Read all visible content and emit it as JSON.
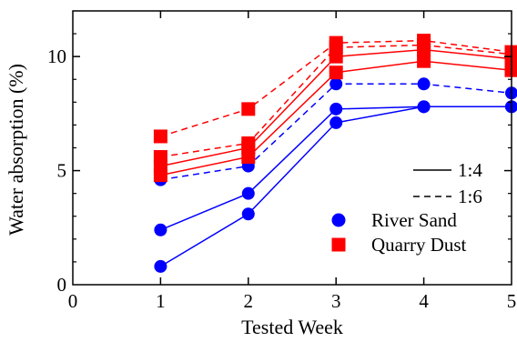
{
  "chart_data": {
    "type": "line",
    "xlabel": "Tested Week",
    "ylabel": "Water absorption (%)",
    "xlim": [
      0,
      5
    ],
    "ylim": [
      0,
      12
    ],
    "xticks": [
      "0",
      "1",
      "2",
      "3",
      "4",
      "5"
    ],
    "yticks": [
      "0",
      "5",
      "10"
    ],
    "grid": false,
    "legend_position": "bottom-right",
    "legend": {
      "line_styles": [
        {
          "label": "1:4",
          "dash": "solid"
        },
        {
          "label": "1:6",
          "dash": "dashed"
        }
      ],
      "markers": [
        {
          "label": "River Sand",
          "marker": "circle",
          "color": "#0000ff"
        },
        {
          "label": "Quarry Dust",
          "marker": "square",
          "color": "#ff0000"
        }
      ]
    },
    "series": [
      {
        "material": "River Sand",
        "ratio": "1:4",
        "marker": "circle",
        "color": "#0000ff",
        "dash": "solid",
        "x": [
          1,
          2,
          3,
          4,
          5
        ],
        "y": [
          0.8,
          3.1,
          7.1,
          7.8,
          7.8
        ]
      },
      {
        "material": "River Sand",
        "ratio": "1:4",
        "marker": "circle",
        "color": "#0000ff",
        "dash": "solid",
        "x": [
          1,
          2,
          3,
          4,
          5
        ],
        "y": [
          2.4,
          4.0,
          7.7,
          7.8,
          7.8
        ]
      },
      {
        "material": "River Sand",
        "ratio": "1:6",
        "marker": "circle",
        "color": "#0000ff",
        "dash": "dashed",
        "x": [
          1,
          2,
          3,
          4,
          5
        ],
        "y": [
          4.6,
          5.2,
          8.8,
          8.8,
          8.4
        ]
      },
      {
        "material": "Quarry Dust",
        "ratio": "1:4",
        "marker": "square",
        "color": "#ff0000",
        "dash": "solid",
        "x": [
          1,
          2,
          3,
          4,
          5
        ],
        "y": [
          4.8,
          5.6,
          9.3,
          9.8,
          9.4
        ]
      },
      {
        "material": "Quarry Dust",
        "ratio": "1:4",
        "marker": "square",
        "color": "#ff0000",
        "dash": "solid",
        "x": [
          1,
          2,
          3,
          4,
          5
        ],
        "y": [
          5.2,
          6.0,
          10.0,
          10.3,
          9.9
        ]
      },
      {
        "material": "Quarry Dust",
        "ratio": "1:6",
        "marker": "square",
        "color": "#ff0000",
        "dash": "dashed",
        "x": [
          1,
          2,
          3,
          4,
          5
        ],
        "y": [
          5.6,
          6.2,
          10.4,
          10.5,
          10.1
        ]
      },
      {
        "material": "Quarry Dust",
        "ratio": "1:6",
        "marker": "square",
        "color": "#ff0000",
        "dash": "dashed",
        "x": [
          1,
          2,
          3,
          4,
          5
        ],
        "y": [
          6.5,
          7.7,
          10.6,
          10.7,
          10.2
        ]
      }
    ]
  }
}
